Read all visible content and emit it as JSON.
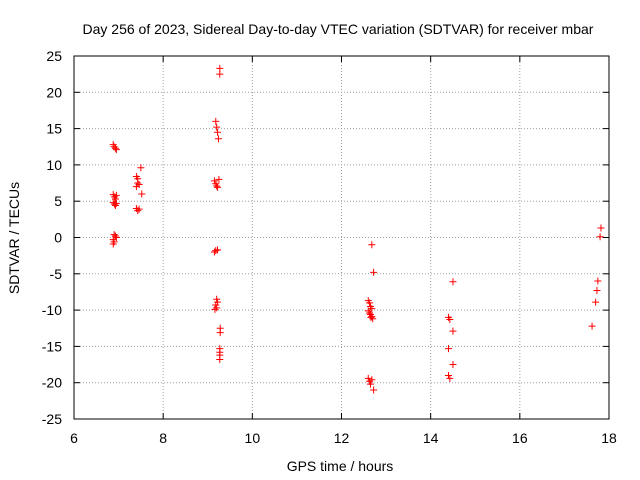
{
  "chart_data": {
    "type": "scatter",
    "title": "Day 256 of 2023, Sidereal Day-to-day VTEC variation (SDTVAR) for receiver mbar",
    "xlabel": "GPS time / hours",
    "ylabel": "SDTVAR / TECUs",
    "xlim": [
      6,
      18
    ],
    "ylim": [
      -25,
      25
    ],
    "xticks": [
      6,
      8,
      10,
      12,
      14,
      16,
      18
    ],
    "yticks": [
      25,
      20,
      15,
      10,
      5,
      0,
      -5,
      -10,
      -15,
      -20,
      -25
    ],
    "grid": true,
    "marker": "+",
    "color": "#ff0000",
    "series": [
      {
        "name": "SDTVAR",
        "points": [
          [
            6.88,
            12.8
          ],
          [
            6.9,
            12.5
          ],
          [
            6.93,
            12.3
          ],
          [
            6.95,
            12.1
          ],
          [
            6.88,
            5.9
          ],
          [
            6.91,
            5.6
          ],
          [
            6.93,
            5.3
          ],
          [
            6.95,
            5.8
          ],
          [
            6.88,
            4.8
          ],
          [
            6.91,
            4.6
          ],
          [
            6.93,
            4.4
          ],
          [
            6.95,
            4.7
          ],
          [
            6.9,
            0.4
          ],
          [
            6.93,
            0.2
          ],
          [
            6.95,
            0.0
          ],
          [
            6.88,
            -0.3
          ],
          [
            6.9,
            -0.6
          ],
          [
            6.88,
            -0.9
          ],
          [
            7.4,
            8.4
          ],
          [
            7.43,
            8.1
          ],
          [
            7.46,
            7.3
          ],
          [
            7.4,
            7.0
          ],
          [
            7.43,
            7.5
          ],
          [
            7.5,
            9.6
          ],
          [
            7.52,
            6.0
          ],
          [
            7.4,
            4.0
          ],
          [
            7.43,
            3.7
          ],
          [
            7.46,
            3.9
          ],
          [
            9.18,
            16.0
          ],
          [
            9.2,
            15.2
          ],
          [
            9.22,
            14.5
          ],
          [
            9.24,
            13.6
          ],
          [
            9.27,
            23.3
          ],
          [
            9.27,
            22.5
          ],
          [
            9.15,
            7.8
          ],
          [
            9.18,
            7.4
          ],
          [
            9.2,
            7.1
          ],
          [
            9.22,
            6.9
          ],
          [
            9.25,
            8.0
          ],
          [
            9.15,
            -2.0
          ],
          [
            9.18,
            -1.8
          ],
          [
            9.22,
            -1.7
          ],
          [
            9.2,
            -8.5
          ],
          [
            9.22,
            -8.9
          ],
          [
            9.18,
            -9.3
          ],
          [
            9.2,
            -9.7
          ],
          [
            9.16,
            -9.9
          ],
          [
            9.28,
            -12.5
          ],
          [
            9.28,
            -13.1
          ],
          [
            9.27,
            -15.3
          ],
          [
            9.27,
            -15.8
          ],
          [
            9.27,
            -16.2
          ],
          [
            9.27,
            -16.8
          ],
          [
            12.68,
            -1.0
          ],
          [
            12.72,
            -4.8
          ],
          [
            12.6,
            -8.7
          ],
          [
            12.63,
            -9.0
          ],
          [
            12.65,
            -9.5
          ],
          [
            12.68,
            -9.8
          ],
          [
            12.6,
            -10.1
          ],
          [
            12.63,
            -10.4
          ],
          [
            12.65,
            -10.6
          ],
          [
            12.68,
            -10.9
          ],
          [
            12.7,
            -11.2
          ],
          [
            12.66,
            -11.0
          ],
          [
            12.6,
            -19.4
          ],
          [
            12.63,
            -19.8
          ],
          [
            12.65,
            -20.2
          ],
          [
            12.68,
            -19.6
          ],
          [
            12.72,
            -21.0
          ],
          [
            14.4,
            -11.0
          ],
          [
            14.43,
            -11.3
          ],
          [
            14.5,
            -6.1
          ],
          [
            14.5,
            -12.9
          ],
          [
            14.4,
            -15.3
          ],
          [
            14.5,
            -17.5
          ],
          [
            14.4,
            -19.0
          ],
          [
            14.43,
            -19.4
          ],
          [
            17.62,
            -12.2
          ],
          [
            17.7,
            -8.9
          ],
          [
            17.73,
            -7.3
          ],
          [
            17.75,
            -6.0
          ],
          [
            17.8,
            0.1
          ],
          [
            17.82,
            1.3
          ]
        ]
      }
    ]
  }
}
